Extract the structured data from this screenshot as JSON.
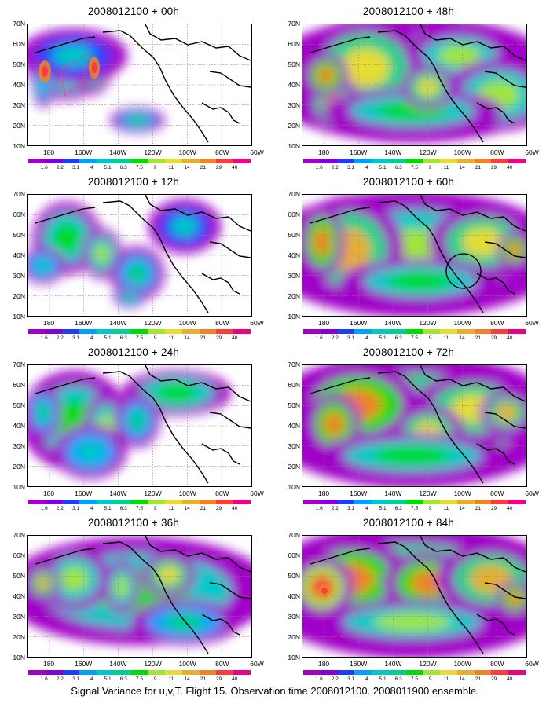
{
  "caption": "Signal Variance for u,v,T. Flight 15. Observation time 2008012100. 2008011900 ensemble.",
  "panels": [
    {
      "title": "2008012100 + 00h",
      "blobs": [
        [
          48,
          62,
          40,
          30,
          0.55
        ],
        [
          22,
          60,
          14,
          22,
          0.6
        ],
        [
          84,
          55,
          20,
          30,
          0.65
        ],
        [
          58,
          40,
          60,
          30,
          0.3
        ],
        [
          140,
          122,
          30,
          14,
          0.45
        ],
        [
          20,
          78,
          12,
          24,
          0.35
        ]
      ],
      "hotspots": [
        [
          22,
          60,
          8,
          14
        ],
        [
          85,
          55,
          7,
          14
        ]
      ],
      "box": true,
      "circle": false
    },
    {
      "title": "2008012100 + 48h",
      "blobs": [
        [
          140,
          70,
          170,
          70,
          0.55
        ],
        [
          80,
          55,
          70,
          55,
          0.7
        ],
        [
          40,
          100,
          30,
          30,
          0.75
        ],
        [
          200,
          40,
          60,
          30,
          0.55
        ],
        [
          250,
          90,
          60,
          40,
          0.6
        ],
        [
          140,
          110,
          100,
          25,
          0.5
        ],
        [
          30,
          65,
          25,
          25,
          0.85
        ],
        [
          160,
          80,
          30,
          25,
          0.7
        ]
      ],
      "hotspots": [],
      "box": false,
      "circle": false
    },
    {
      "title": "2008012100 + 12h",
      "blobs": [
        [
          50,
          55,
          38,
          40,
          0.5
        ],
        [
          95,
          75,
          22,
          28,
          0.55
        ],
        [
          140,
          100,
          30,
          30,
          0.4
        ],
        [
          20,
          90,
          25,
          20,
          0.35
        ],
        [
          200,
          40,
          40,
          30,
          0.3
        ],
        [
          130,
          130,
          18,
          12,
          0.4
        ]
      ],
      "hotspots": [],
      "box": false,
      "circle": false
    },
    {
      "title": "2008012100 + 60h",
      "blobs": [
        [
          140,
          75,
          170,
          70,
          0.6
        ],
        [
          60,
          70,
          60,
          60,
          0.75
        ],
        [
          25,
          60,
          25,
          40,
          0.85
        ],
        [
          230,
          60,
          60,
          40,
          0.65
        ],
        [
          270,
          70,
          20,
          20,
          0.85
        ],
        [
          150,
          110,
          90,
          25,
          0.5
        ]
      ],
      "hotspots": [],
      "box": false,
      "circle": true
    },
    {
      "title": "2008012100 + 24h",
      "blobs": [
        [
          60,
          70,
          60,
          55,
          0.5
        ],
        [
          100,
          80,
          25,
          40,
          0.55
        ],
        [
          190,
          35,
          60,
          25,
          0.5
        ],
        [
          20,
          60,
          20,
          30,
          0.45
        ],
        [
          140,
          70,
          25,
          30,
          0.4
        ],
        [
          80,
          110,
          40,
          30,
          0.35
        ]
      ],
      "hotspots": [],
      "box": false,
      "circle": false
    },
    {
      "title": "2008012100 + 72h",
      "blobs": [
        [
          140,
          70,
          170,
          75,
          0.65
        ],
        [
          70,
          50,
          70,
          45,
          0.8
        ],
        [
          40,
          75,
          30,
          35,
          0.85
        ],
        [
          220,
          55,
          70,
          40,
          0.7
        ],
        [
          160,
          85,
          40,
          30,
          0.7
        ],
        [
          260,
          60,
          30,
          25,
          0.75
        ],
        [
          140,
          115,
          110,
          25,
          0.5
        ]
      ],
      "hotspots": [],
      "box": false,
      "circle": false
    },
    {
      "title": "2008012100 + 36h",
      "blobs": [
        [
          140,
          70,
          150,
          60,
          0.5
        ],
        [
          60,
          55,
          40,
          35,
          0.6
        ],
        [
          20,
          60,
          20,
          20,
          0.75
        ],
        [
          180,
          50,
          30,
          25,
          0.65
        ],
        [
          120,
          65,
          20,
          30,
          0.55
        ],
        [
          200,
          110,
          60,
          25,
          0.4
        ]
      ],
      "hotspots": [],
      "box": false,
      "circle": false
    },
    {
      "title": "2008012100 + 84h",
      "blobs": [
        [
          140,
          70,
          175,
          75,
          0.7
        ],
        [
          60,
          55,
          70,
          45,
          0.85
        ],
        [
          25,
          65,
          35,
          35,
          0.95
        ],
        [
          160,
          60,
          50,
          35,
          0.8
        ],
        [
          240,
          55,
          60,
          40,
          0.75
        ],
        [
          140,
          110,
          110,
          25,
          0.55
        ],
        [
          270,
          80,
          20,
          20,
          0.85
        ]
      ],
      "hotspots": [
        [
          28,
          70,
          8,
          8
        ]
      ],
      "box": false,
      "circle": false
    }
  ],
  "axes": {
    "lat_labels": [
      "70N",
      "60N",
      "50N",
      "40N",
      "30N",
      "20N",
      "10N"
    ],
    "lon_labels": [
      "180",
      "160W",
      "140W",
      "120W",
      "100W",
      "80W",
      "60W"
    ]
  },
  "colorbar": {
    "labels": [
      "1.6",
      "2.2",
      "3.1",
      "4",
      "5.1",
      "6.3",
      "7.5",
      "9",
      "11",
      "14",
      "21",
      "29",
      "40"
    ],
    "colors": [
      "#a000c8",
      "#8200dc",
      "#1e3cff",
      "#00a0ff",
      "#00c8c8",
      "#00d28c",
      "#00dc00",
      "#a0e632",
      "#e6dc32",
      "#e6af2d",
      "#f08228",
      "#fa3c3c",
      "#f00082"
    ]
  }
}
